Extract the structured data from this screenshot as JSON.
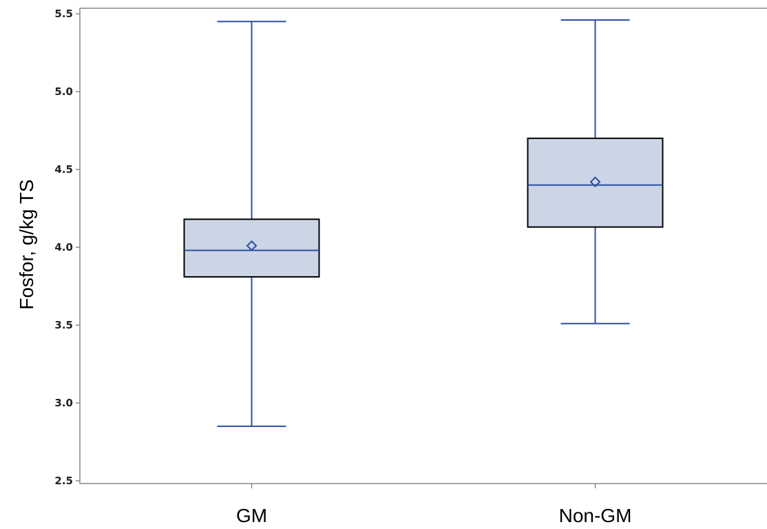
{
  "chart_data": {
    "type": "box",
    "title": "",
    "xlabel": "",
    "ylabel": "Fosfor, g/kg TS",
    "ylim": [
      2.5,
      5.5
    ],
    "yticks": [
      "2.5",
      "3.0",
      "3.5",
      "4.0",
      "4.5",
      "5.0",
      "5.5"
    ],
    "grid": false,
    "categories": [
      "GM",
      "Non-GM"
    ],
    "boxes": [
      {
        "min": 2.85,
        "q1": 3.81,
        "median": 3.98,
        "mean": 4.01,
        "q3": 4.18,
        "max": 5.45
      },
      {
        "min": 3.51,
        "q1": 4.13,
        "median": 4.4,
        "mean": 4.42,
        "q3": 4.7,
        "max": 5.46
      }
    ],
    "colors": {
      "box_fill": "#cbd5e6",
      "box_edge": "#000000",
      "whisker": "#2a4ea0",
      "median": "#2a4ea0",
      "mean_marker": "#2a4ea0",
      "axis": "#888888"
    }
  }
}
